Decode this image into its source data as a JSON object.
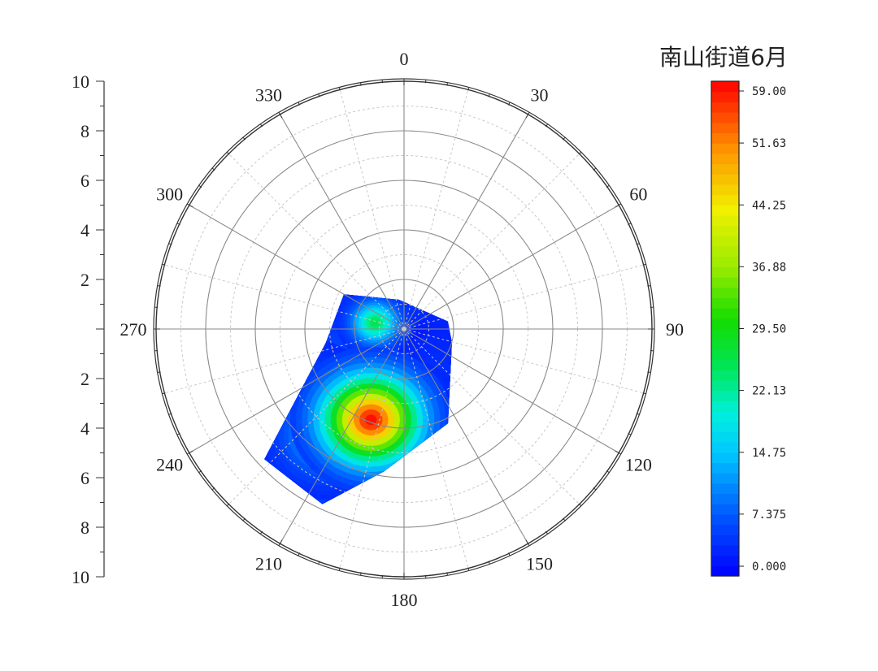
{
  "chart_data": {
    "type": "heatmap",
    "subtype": "polar-contour",
    "title": "南山街道6月",
    "angular_ticks": [
      "0",
      "30",
      "60",
      "90",
      "120",
      "150",
      "180",
      "210",
      "240",
      "270",
      "300",
      "330"
    ],
    "angular_direction": "clockwise, 0 at top",
    "radial_range": [
      0,
      10
    ],
    "radial_ticks_upper": [
      "10",
      "8",
      "6",
      "4",
      "2"
    ],
    "radial_ticks_lower": [
      "2",
      "4",
      "6",
      "8",
      "10"
    ],
    "grid": true,
    "colorbar": {
      "position": "right",
      "range": [
        0,
        59
      ],
      "tick_labels": [
        "59.00",
        "51.63",
        "44.25",
        "36.88",
        "29.50",
        "22.13",
        "14.75",
        "7.375",
        "0.000"
      ],
      "tick_values": [
        59.0,
        51.63,
        44.25,
        36.88,
        29.5,
        22.13,
        14.75,
        7.375,
        0.0
      ],
      "colormap": "rainbow"
    },
    "data_region_boundary": [
      {
        "theta": 300,
        "r": 2.8
      },
      {
        "theta": 350,
        "r": 1.2
      },
      {
        "theta": 80,
        "r": 1.8
      },
      {
        "theta": 105,
        "r": 2.0
      },
      {
        "theta": 155,
        "r": 4.2
      },
      {
        "theta": 188,
        "r": 5.8
      },
      {
        "theta": 205,
        "r": 7.8
      },
      {
        "theta": 227,
        "r": 7.7
      },
      {
        "theta": 260,
        "r": 3.2
      }
    ],
    "hotspots": [
      {
        "theta": 200,
        "r": 3.9,
        "value": 59
      },
      {
        "theta": 282,
        "r": 1.2,
        "value": 26
      },
      {
        "theta": 175,
        "r": 3.0,
        "value": 10
      },
      {
        "theta": 140,
        "r": 2.0,
        "value": 4
      },
      {
        "theta": 110,
        "r": 0.6,
        "value": 2
      },
      {
        "theta": 228,
        "r": 6.5,
        "value": 15
      },
      {
        "theta": 250,
        "r": 3.0,
        "value": 6
      },
      {
        "theta": 320,
        "r": 1.5,
        "value": 10
      },
      {
        "theta": 215,
        "r": 5.2,
        "value": 18
      }
    ]
  }
}
